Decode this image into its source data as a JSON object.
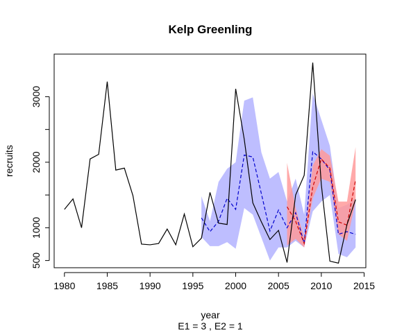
{
  "chart_data": {
    "type": "line",
    "title": "Kelp Greenling",
    "xlabel": "year",
    "ylabel": "recruits",
    "subtitle": "E1 = 3 , E2 = 1",
    "xlim": [
      1978.8,
      2015.2
    ],
    "ylim": [
      390,
      3650
    ],
    "xticks": [
      1980,
      1985,
      1990,
      1995,
      2000,
      2005,
      2010,
      2015
    ],
    "yticks": [
      500,
      1000,
      2000,
      3000
    ],
    "grid": false,
    "legend": "none",
    "colors": {
      "observed": "#000000",
      "band_e1": "#b3b3ff",
      "band_e2": "#ff9a9a",
      "forecast_e1": "#0000cc",
      "forecast_e2": "#cc0000"
    },
    "observed": {
      "x": [
        1980,
        1981,
        1982,
        1983,
        1984,
        1985,
        1986,
        1987,
        1988,
        1989,
        1990,
        1991,
        1992,
        1993,
        1994,
        1995,
        1996,
        1997,
        1998,
        1999,
        2000,
        2001,
        2002,
        2003,
        2004,
        2005,
        2006,
        2007,
        2008,
        2009,
        2010,
        2011,
        2012,
        2013,
        2014
      ],
      "y": [
        1280,
        1440,
        1000,
        2050,
        2120,
        3230,
        1880,
        1910,
        1490,
        750,
        740,
        760,
        980,
        740,
        1210,
        710,
        840,
        1540,
        1070,
        1050,
        3120,
        2350,
        1380,
        1090,
        820,
        960,
        470,
        1500,
        1800,
        3520,
        1660,
        490,
        460,
        1050,
        1430
      ]
    },
    "forecast_e1": {
      "x": [
        1996,
        1997,
        1998,
        1999,
        2000,
        2001,
        2002,
        2003,
        2004,
        2005,
        2006,
        2007,
        2008,
        2009,
        2010,
        2011,
        2012,
        2013,
        2014
      ],
      "y": [
        1150,
        940,
        1100,
        1450,
        1280,
        2110,
        2080,
        1520,
        950,
        1270,
        1000,
        1230,
        760,
        2160,
        2050,
        1880,
        900,
        940,
        900
      ],
      "lower": [
        860,
        720,
        720,
        780,
        680,
        1300,
        1200,
        850,
        500,
        700,
        700,
        800,
        700,
        1250,
        1400,
        1500,
        600,
        550,
        700
      ],
      "upper": [
        1480,
        1100,
        1700,
        1900,
        2000,
        2940,
        2990,
        2150,
        1750,
        1850,
        1400,
        1750,
        1200,
        3050,
        2650,
        2250,
        1300,
        1350,
        1450
      ]
    },
    "forecast_e2": {
      "x": [
        2006,
        2007,
        2008,
        2009,
        2010,
        2011,
        2012,
        2013,
        2014
      ],
      "y": [
        1320,
        1100,
        760,
        1620,
        2050,
        1910,
        1090,
        1040,
        1730
      ],
      "lower": [
        730,
        830,
        700,
        1450,
        1750,
        1700,
        900,
        800,
        1400
      ],
      "upper": [
        1990,
        1300,
        850,
        1950,
        2200,
        2100,
        1400,
        1400,
        2230
      ]
    }
  }
}
